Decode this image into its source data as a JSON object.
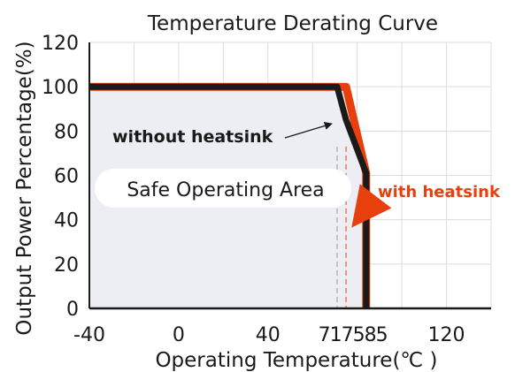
{
  "chart_data": {
    "type": "line",
    "title": "Temperature Derating Curve",
    "xlabel": "Operating Temperature(℃ )",
    "ylabel": "Output Power Percentage(%)",
    "x_ticks": [
      "-40",
      "0",
      "40",
      "71",
      "75",
      "85",
      "120"
    ],
    "x_tick_values": [
      -40,
      0,
      40,
      71,
      75,
      85,
      120
    ],
    "x_ticks_combined_label": "717585",
    "y_ticks": [
      0,
      20,
      40,
      60,
      80,
      100,
      120
    ],
    "xlim": [
      -40,
      140
    ],
    "ylim": [
      0,
      120
    ],
    "grid": true,
    "series": [
      {
        "name": "without heatsink",
        "color": "#1a1a1a",
        "x": [
          -40,
          71,
          75,
          84,
          84
        ],
        "y": [
          100,
          100,
          85,
          61,
          0
        ]
      },
      {
        "name": "with heatsink",
        "color": "#e8400c",
        "x": [
          -40,
          75,
          84,
          84
        ],
        "y": [
          100,
          100,
          61,
          0
        ]
      }
    ],
    "safe_area_label": "Safe Operating Area",
    "annotations": [
      "without heatsink",
      "with heatsink"
    ],
    "annotation_colors": {
      "without heatsink": "#1a1a1a",
      "with heatsink": "#e8400c"
    },
    "safe_area_fill": "#eceef4"
  }
}
